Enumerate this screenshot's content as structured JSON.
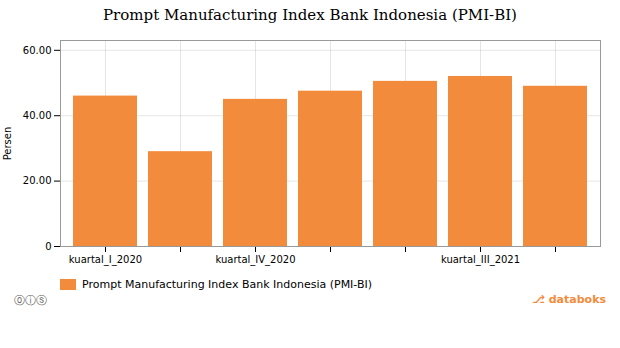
{
  "chart_data": {
    "type": "bar",
    "title": "Prompt Manufacturing Index Bank Indonesia (PMI-BI)",
    "ylabel": "Persen",
    "categories": [
      "kuartal_I_2020",
      null,
      "kuartal_IV_2020",
      null,
      null,
      "kuartal_III_2021",
      null
    ],
    "series": [
      {
        "name": "Prompt Manufacturing Index Bank Indonesia (PMI-BI)",
        "color": "#F28C3C",
        "values": [
          46.0,
          29.0,
          45.0,
          47.5,
          50.5,
          52.0,
          49.0
        ]
      }
    ],
    "ylim": [
      0,
      63
    ],
    "yticks": [
      0,
      {
        "value": 20.0,
        "label": "20.00"
      },
      {
        "value": 40.0,
        "label": "40.00"
      },
      {
        "value": 60.0,
        "label": "60.00"
      }
    ],
    "grid": true,
    "legend": "lower left",
    "annotations": [
      "⓪ⓘⓢ",
      "⎇",
      "databoks"
    ]
  }
}
